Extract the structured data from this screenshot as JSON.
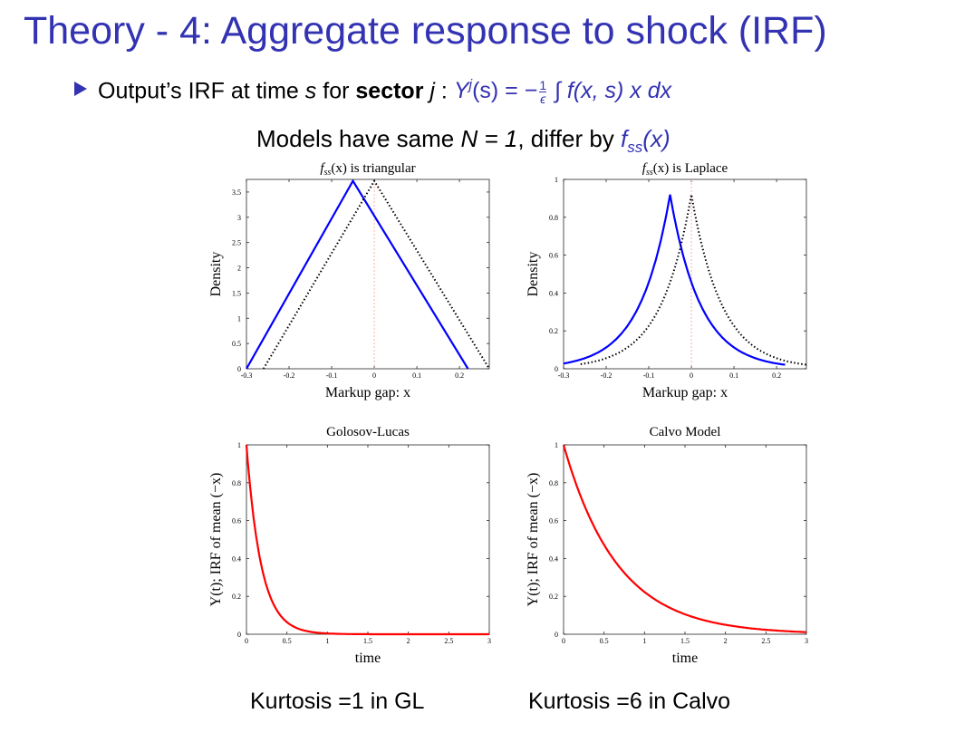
{
  "slide": {
    "title": "Theory - 4: Aggregate response to shock (IRF)",
    "bullet": {
      "prefix": "Output’s IRF at time",
      "s1": "s",
      "for": "for",
      "bold": "sector",
      "j": "j",
      "colon": ":",
      "formula_lhs": "Y",
      "formula_sup": "j",
      "formula_arg": "(s) = −",
      "frac_num": "1",
      "frac_den": "ϵ",
      "formula_rhs": "∫ f(x, s) x dx"
    },
    "subtitle": {
      "text": "Models have same",
      "n_eq": "N = 1",
      "mid": ", differ by",
      "f": "f",
      "f_sub": "ss",
      "f_arg": "(x)"
    },
    "footer_left": "Kurtosis =1 in GL",
    "footer_right": "Kurtosis =6 in Calvo"
  },
  "colors": {
    "title": "#3333b2",
    "blue_curve": "#0000ff",
    "red_curve": "#ff0000",
    "dotted_curve": "#000000",
    "zero_line": "#ff9999"
  },
  "chart_data": [
    {
      "type": "line",
      "title": "f_ss(x) is triangular",
      "title_parts": {
        "f": "f",
        "sub": "ss",
        "rest": "(x) is triangular"
      },
      "xlabel": "Markup gap: x",
      "ylabel": "Density",
      "xlim": [
        -0.3,
        0.27
      ],
      "ylim": [
        0,
        3.75
      ],
      "xticks": [
        "-0.3",
        "-0.2",
        "-0.1",
        "0",
        "0.1",
        "0.2"
      ],
      "xtick_values": [
        -0.3,
        -0.2,
        -0.1,
        0,
        0.1,
        0.2
      ],
      "yticks": [
        "0",
        "0.5",
        "1",
        "1.5",
        "2",
        "2.5",
        "3",
        "3.5"
      ],
      "ytick_values": [
        0,
        0.5,
        1,
        1.5,
        2,
        2.5,
        3,
        3.5
      ],
      "series": [
        {
          "style": "solid",
          "color": "blue",
          "x": [
            -0.3,
            -0.05,
            0.22
          ],
          "y": [
            0,
            3.72,
            0
          ]
        },
        {
          "style": "dotted",
          "color": "black",
          "x": [
            -0.26,
            0,
            0.27
          ],
          "y": [
            0,
            3.72,
            0
          ]
        }
      ],
      "vline": 0
    },
    {
      "type": "line",
      "title": "f_ss(x) is Laplace",
      "title_parts": {
        "f": "f",
        "sub": "ss",
        "rest": "(x) is Laplace"
      },
      "xlabel": "Markup gap: x",
      "ylabel": "Density",
      "xlim": [
        -0.3,
        0.27
      ],
      "ylim": [
        0,
        1
      ],
      "xticks": [
        "-0.3",
        "-0.2",
        "-0.1",
        "0",
        "0.1",
        "0.2"
      ],
      "xtick_values": [
        -0.3,
        -0.2,
        -0.1,
        0,
        0.1,
        0.2
      ],
      "yticks": [
        "0",
        "0.2",
        "0.4",
        "0.6",
        "0.8",
        "1"
      ],
      "ytick_values": [
        0,
        0.2,
        0.4,
        0.6,
        0.8,
        1
      ],
      "series": [
        {
          "style": "solid",
          "color": "blue",
          "peak": -0.05,
          "height": 0.92,
          "start": -0.3,
          "end": 0.22
        },
        {
          "style": "dotted",
          "color": "black",
          "peak": 0,
          "height": 0.92,
          "start": -0.26,
          "end": 0.27
        }
      ],
      "vline": 0
    },
    {
      "type": "line",
      "title": "Golosov-Lucas",
      "xlabel": "time",
      "ylabel": "Y(t); IRF of mean (−x)",
      "xlim": [
        0,
        3
      ],
      "ylim": [
        0,
        1
      ],
      "xticks": [
        "0",
        "0.5",
        "1",
        "1.5",
        "2",
        "2.5",
        "3"
      ],
      "xtick_values": [
        0,
        0.5,
        1,
        1.5,
        2,
        2.5,
        3
      ],
      "yticks": [
        "0",
        "0.2",
        "0.4",
        "0.6",
        "0.8",
        "1"
      ],
      "ytick_values": [
        0,
        0.2,
        0.4,
        0.6,
        0.8,
        1
      ],
      "series": [
        {
          "style": "solid",
          "color": "red",
          "decay_rate": 5.5
        }
      ]
    },
    {
      "type": "line",
      "title": "Calvo Model",
      "xlabel": "time",
      "ylabel": "Y(t); IRF of mean (−x)",
      "xlim": [
        0,
        3
      ],
      "ylim": [
        0,
        1
      ],
      "xticks": [
        "0",
        "0.5",
        "1",
        "1.5",
        "2",
        "2.5",
        "3"
      ],
      "xtick_values": [
        0,
        0.5,
        1,
        1.5,
        2,
        2.5,
        3
      ],
      "yticks": [
        "0",
        "0.2",
        "0.4",
        "0.6",
        "0.8",
        "1"
      ],
      "ytick_values": [
        0,
        0.2,
        0.4,
        0.6,
        0.8,
        1
      ],
      "series": [
        {
          "style": "solid",
          "color": "red",
          "decay_rate": 1.5
        }
      ]
    }
  ]
}
